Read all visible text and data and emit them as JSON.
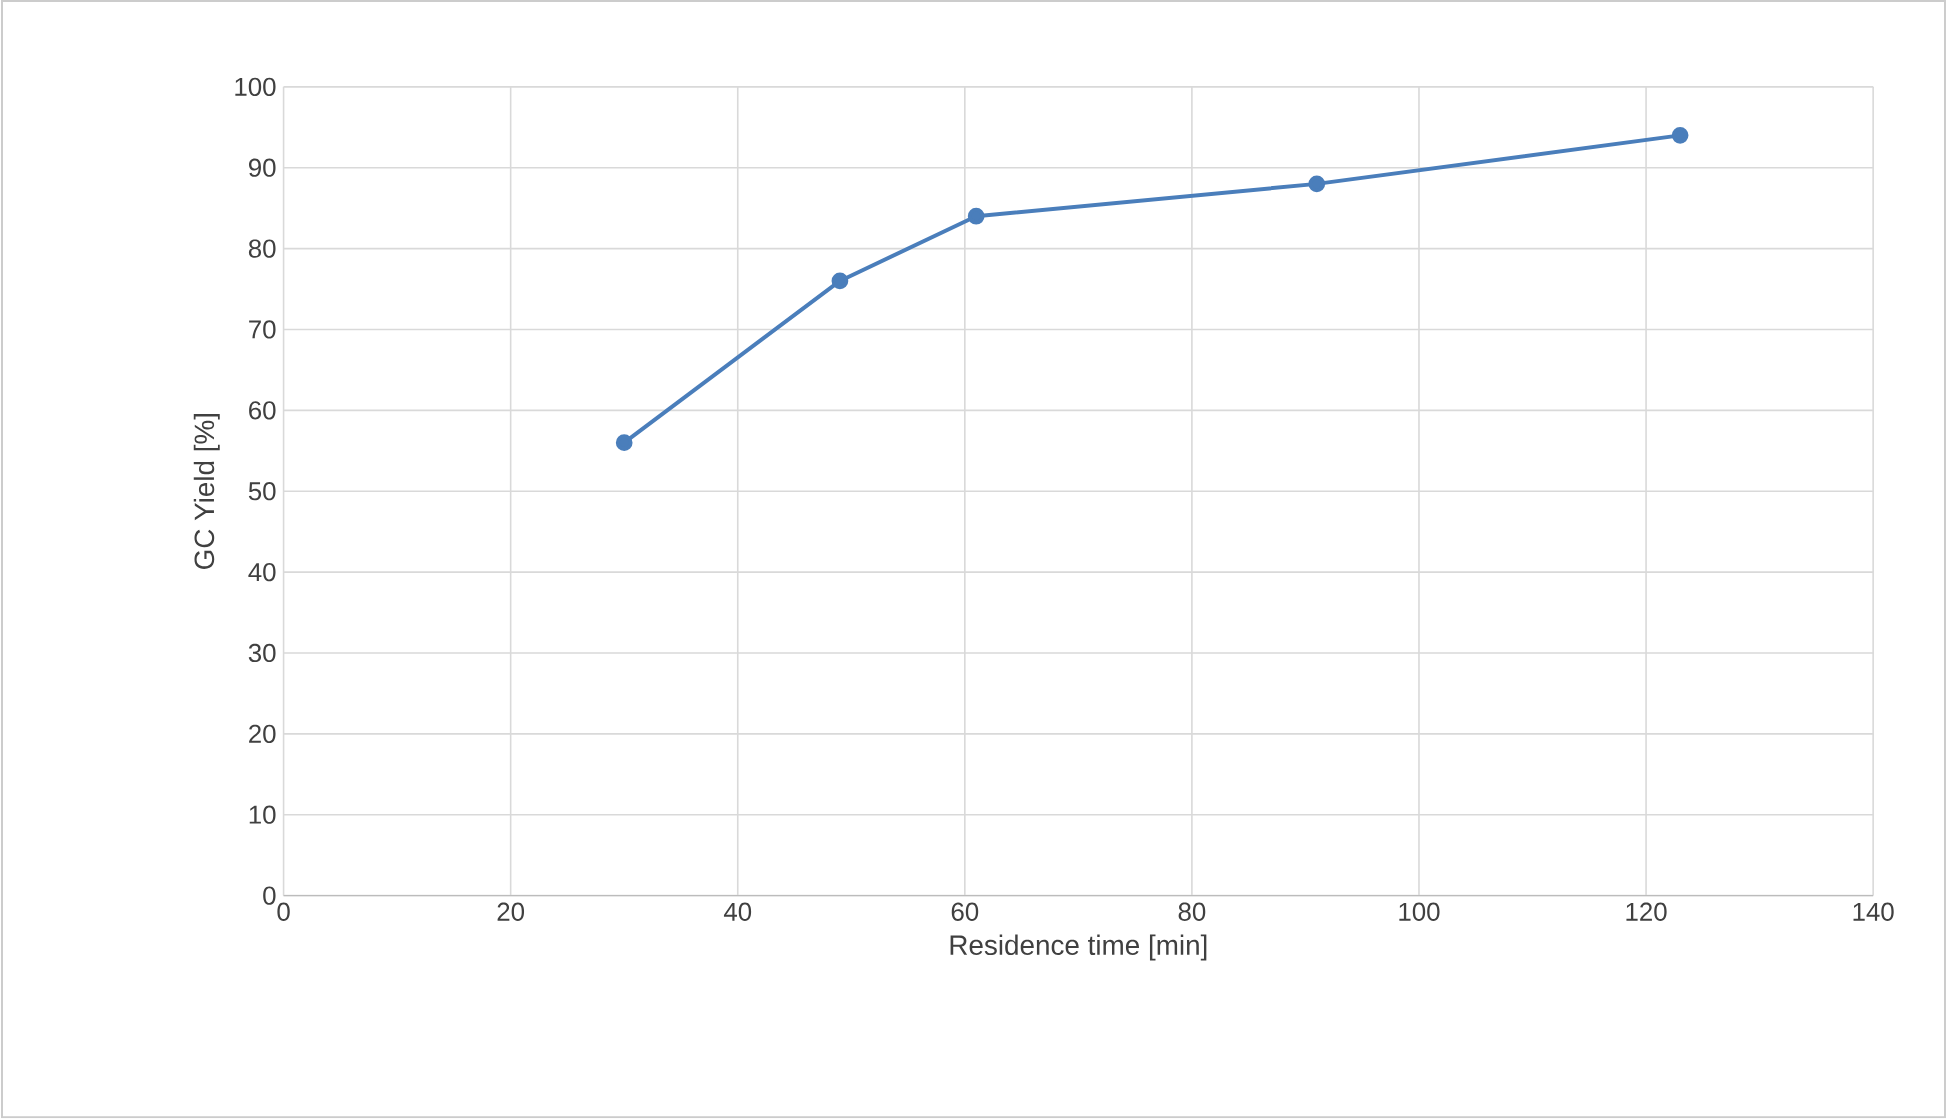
{
  "chart_data": {
    "type": "line",
    "xlabel": "Residence time [min]",
    "ylabel": "GC Yield [%]",
    "x": [
      30,
      49,
      61,
      91,
      123
    ],
    "series": [
      {
        "color": "#4a7ebb",
        "values": [
          56,
          76,
          84,
          88,
          94
        ]
      }
    ],
    "xlim": [
      0,
      140
    ],
    "xticks": [
      0,
      20,
      40,
      60,
      80,
      100,
      120,
      140
    ],
    "ylim": [
      0,
      100
    ],
    "yticks": [
      0,
      10,
      20,
      30,
      40,
      50,
      60,
      70,
      80,
      90,
      100
    ],
    "grid": true,
    "marker": "circle",
    "line_style": "solid"
  }
}
